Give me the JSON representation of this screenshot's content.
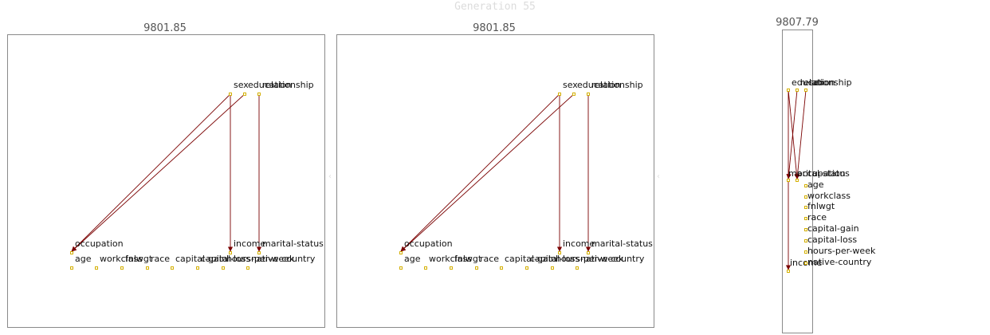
{
  "title": "Generation 55",
  "colors": {
    "edge": "#7a0000",
    "node_border": "#d4b000",
    "frame": "#8a8a8a"
  },
  "panels": [
    {
      "score": "9801.85",
      "nodes": [
        "sex",
        "education",
        "relationship",
        "marital-status",
        "occupation",
        "income",
        "age",
        "workclass",
        "fnlwgt",
        "race",
        "capital-gain",
        "capital-loss",
        "hours-per-week",
        "native-country"
      ],
      "edges": [
        {
          "from": "sex",
          "to": "occupation"
        },
        {
          "from": "sex",
          "to": "income"
        },
        {
          "from": "education",
          "to": "occupation"
        },
        {
          "from": "relationship",
          "to": "marital-status"
        }
      ]
    },
    {
      "score": "9801.85",
      "nodes": [
        "sex",
        "education",
        "relationship",
        "marital-status",
        "occupation",
        "income",
        "age",
        "workclass",
        "fnlwgt",
        "race",
        "capital-gain",
        "capital-loss",
        "hours-per-week",
        "native-country"
      ],
      "edges": [
        {
          "from": "sex",
          "to": "occupation"
        },
        {
          "from": "sex",
          "to": "income"
        },
        {
          "from": "education",
          "to": "occupation"
        },
        {
          "from": "relationship",
          "to": "marital-status"
        }
      ]
    },
    {
      "score": "9807.79",
      "nodes": [
        "education",
        "relationship",
        "sex",
        "marital-status",
        "occupation",
        "income",
        "age",
        "workclass",
        "fnlwgt",
        "race",
        "capital-gain",
        "capital-loss",
        "hours-per-week",
        "native-country"
      ],
      "edges": [
        {
          "from": "education",
          "to": "income"
        },
        {
          "from": "education",
          "to": "occupation"
        },
        {
          "from": "relationship",
          "to": "marital-status"
        },
        {
          "from": "sex",
          "to": "occupation"
        }
      ]
    }
  ]
}
